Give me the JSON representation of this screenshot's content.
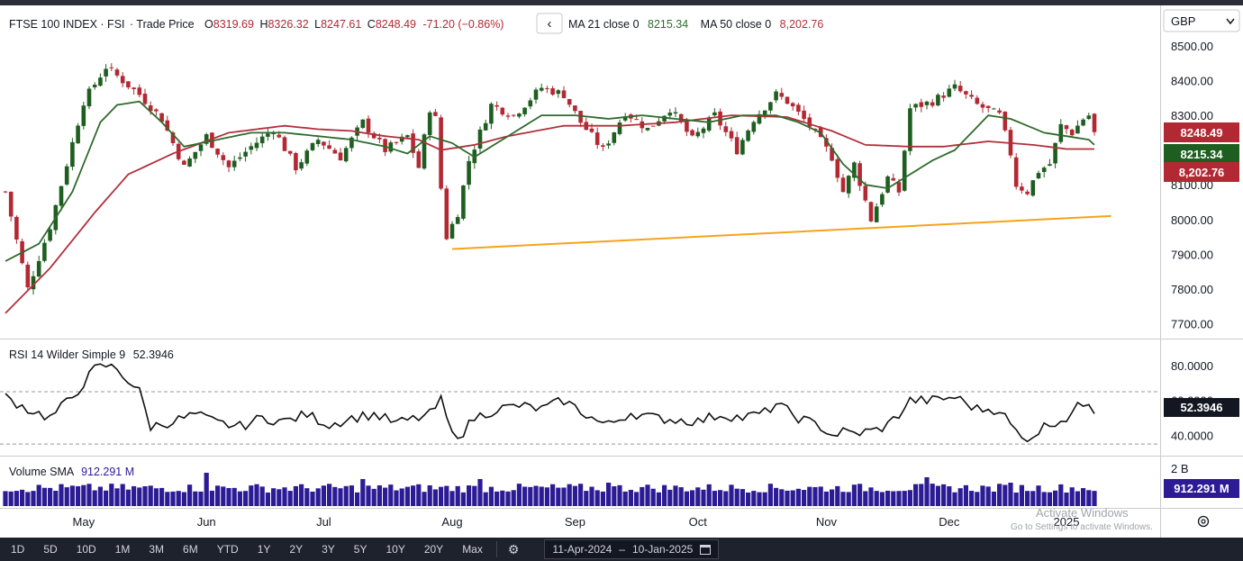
{
  "header": {
    "symbol": "FTSE 100 INDEX · FSI",
    "price_type": "· Trade Price",
    "o_label": "O",
    "o_value": "8319.69",
    "h_label": "H",
    "h_value": "8326.32",
    "l_label": "L",
    "l_value": "8247.61",
    "c_label": "C",
    "c_value": "8248.49",
    "change": "-71.20 (−0.86%)",
    "collapse_glyph": "‹",
    "ma21_label": "MA 21 close 0",
    "ma21_value": "8215.34",
    "ma50_label": "MA 50 close 0",
    "ma50_value": "8,202.76"
  },
  "currency": "GBP",
  "price_badges": {
    "close": "8248.49",
    "ma21": "8215.34",
    "ma50": "8,202.76"
  },
  "rsi": {
    "label": "RSI 14 Wilder Simple 9",
    "value": "52.3946",
    "badge": "52.3946"
  },
  "volume": {
    "label": "Volume SMA",
    "value": "912.291 M",
    "badge": "912.291 M",
    "axis_tick": "2 B"
  },
  "x_axis_labels": [
    {
      "text": "May",
      "day": 14
    },
    {
      "text": "Jun",
      "day": 36
    },
    {
      "text": "Jul",
      "day": 57
    },
    {
      "text": "Aug",
      "day": 80
    },
    {
      "text": "Sep",
      "day": 102
    },
    {
      "text": "Oct",
      "day": 124
    },
    {
      "text": "Nov",
      "day": 147
    },
    {
      "text": "Dec",
      "day": 169
    },
    {
      "text": "2025",
      "day": 190
    }
  ],
  "watermark": {
    "line1": "Activate Windows",
    "line2": "Go to Settings to activate Windows."
  },
  "colors": {
    "up": "#1e5e20",
    "down": "#b22833",
    "ma21": "#2e6b2c",
    "ma50": "#b2303b",
    "trend": "#f7a21b",
    "rsi": "#111111",
    "volume": "#2d1b96",
    "badge_dark": "#131722"
  },
  "range_buttons": [
    "1D",
    "5D",
    "10D",
    "1M",
    "3M",
    "6M",
    "YTD",
    "1Y",
    "2Y",
    "3Y",
    "5Y",
    "10Y",
    "20Y",
    "Max"
  ],
  "date_range": {
    "from": "11-Apr-2024",
    "dash": "–",
    "to": "10-Jan-2025"
  },
  "chart_data": [
    {
      "type": "candlestick",
      "title": "FTSE 100 INDEX · FSI",
      "x_range": [
        "11-Apr-2024",
        "10-Jan-2025"
      ],
      "y_ticks": [
        8500,
        8400,
        8300,
        8200,
        8100,
        8000,
        7900,
        7800,
        7700
      ],
      "ylim": [
        7660,
        8540
      ],
      "anchors": [
        [
          0,
          8080
        ],
        [
          4,
          7800
        ],
        [
          8,
          7980
        ],
        [
          14,
          8340
        ],
        [
          18,
          8440
        ],
        [
          24,
          8360
        ],
        [
          28,
          8290
        ],
        [
          32,
          8150
        ],
        [
          36,
          8240
        ],
        [
          40,
          8150
        ],
        [
          44,
          8210
        ],
        [
          48,
          8260
        ],
        [
          52,
          8150
        ],
        [
          56,
          8230
        ],
        [
          60,
          8180
        ],
        [
          64,
          8280
        ],
        [
          68,
          8200
        ],
        [
          72,
          8240
        ],
        [
          74,
          8150
        ],
        [
          76,
          8320
        ],
        [
          77,
          8290
        ],
        [
          78,
          8090
        ],
        [
          79,
          7950
        ],
        [
          81,
          8020
        ],
        [
          83,
          8170
        ],
        [
          87,
          8330
        ],
        [
          91,
          8300
        ],
        [
          96,
          8380
        ],
        [
          100,
          8360
        ],
        [
          103,
          8280
        ],
        [
          107,
          8200
        ],
        [
          111,
          8310
        ],
        [
          115,
          8260
        ],
        [
          119,
          8320
        ],
        [
          123,
          8230
        ],
        [
          127,
          8300
        ],
        [
          131,
          8200
        ],
        [
          134,
          8290
        ],
        [
          138,
          8360
        ],
        [
          140,
          8340
        ],
        [
          144,
          8270
        ],
        [
          148,
          8180
        ],
        [
          150,
          8080
        ],
        [
          152,
          8160
        ],
        [
          155,
          8000
        ],
        [
          158,
          8120
        ],
        [
          160,
          8080
        ],
        [
          162,
          8320
        ],
        [
          166,
          8340
        ],
        [
          170,
          8380
        ],
        [
          174,
          8330
        ],
        [
          178,
          8300
        ],
        [
          180,
          8190
        ],
        [
          181,
          8100
        ],
        [
          183,
          8080
        ],
        [
          185,
          8140
        ],
        [
          187,
          8160
        ],
        [
          189,
          8270
        ],
        [
          191,
          8250
        ],
        [
          193,
          8290
        ],
        [
          194,
          8300
        ],
        [
          195,
          8248
        ]
      ],
      "ma21_anchors": [
        [
          0,
          7880
        ],
        [
          6,
          7930
        ],
        [
          12,
          8080
        ],
        [
          17,
          8280
        ],
        [
          20,
          8330
        ],
        [
          24,
          8340
        ],
        [
          28,
          8280
        ],
        [
          32,
          8210
        ],
        [
          38,
          8230
        ],
        [
          44,
          8250
        ],
        [
          50,
          8250
        ],
        [
          56,
          8240
        ],
        [
          62,
          8230
        ],
        [
          68,
          8210
        ],
        [
          72,
          8190
        ],
        [
          76,
          8240
        ],
        [
          80,
          8220
        ],
        [
          84,
          8180
        ],
        [
          90,
          8240
        ],
        [
          96,
          8300
        ],
        [
          102,
          8300
        ],
        [
          108,
          8290
        ],
        [
          114,
          8300
        ],
        [
          120,
          8290
        ],
        [
          126,
          8280
        ],
        [
          132,
          8300
        ],
        [
          138,
          8300
        ],
        [
          142,
          8280
        ],
        [
          146,
          8250
        ],
        [
          150,
          8160
        ],
        [
          154,
          8100
        ],
        [
          158,
          8090
        ],
        [
          162,
          8130
        ],
        [
          166,
          8170
        ],
        [
          170,
          8200
        ],
        [
          176,
          8300
        ],
        [
          180,
          8290
        ],
        [
          186,
          8250
        ],
        [
          190,
          8240
        ],
        [
          194,
          8230
        ],
        [
          195,
          8215
        ]
      ],
      "ma50_anchors": [
        [
          0,
          7730
        ],
        [
          8,
          7860
        ],
        [
          16,
          8020
        ],
        [
          22,
          8130
        ],
        [
          30,
          8190
        ],
        [
          40,
          8250
        ],
        [
          50,
          8270
        ],
        [
          56,
          8260
        ],
        [
          62,
          8255
        ],
        [
          68,
          8240
        ],
        [
          74,
          8230
        ],
        [
          78,
          8200
        ],
        [
          84,
          8215
        ],
        [
          90,
          8240
        ],
        [
          100,
          8270
        ],
        [
          110,
          8270
        ],
        [
          120,
          8280
        ],
        [
          130,
          8300
        ],
        [
          140,
          8295
        ],
        [
          148,
          8255
        ],
        [
          154,
          8215
        ],
        [
          162,
          8210
        ],
        [
          168,
          8210
        ],
        [
          176,
          8225
        ],
        [
          184,
          8215
        ],
        [
          190,
          8203
        ],
        [
          195,
          8203
        ]
      ],
      "trend_line": {
        "from": [
          80,
          7915
        ],
        "to": [
          198,
          8010
        ]
      },
      "series": [
        {
          "name": "MA 21 close 0",
          "last": 8215.34
        },
        {
          "name": "MA 50 close 0",
          "last": 8202.76
        }
      ]
    },
    {
      "type": "line",
      "title": "RSI 14 Wilder Simple 9",
      "y_ticks": [
        80,
        60,
        40
      ],
      "ylim": [
        30,
        90
      ],
      "reference_lines": [
        65,
        35
      ],
      "anchors": [
        [
          0,
          62
        ],
        [
          4,
          55
        ],
        [
          8,
          50
        ],
        [
          12,
          62
        ],
        [
          16,
          78
        ],
        [
          18,
          80
        ],
        [
          20,
          78
        ],
        [
          24,
          65
        ],
        [
          26,
          45
        ],
        [
          30,
          48
        ],
        [
          34,
          52
        ],
        [
          38,
          47
        ],
        [
          42,
          45
        ],
        [
          46,
          50
        ],
        [
          50,
          48
        ],
        [
          54,
          52
        ],
        [
          58,
          46
        ],
        [
          62,
          50
        ],
        [
          66,
          52
        ],
        [
          70,
          47
        ],
        [
          74,
          50
        ],
        [
          76,
          52
        ],
        [
          78,
          60
        ],
        [
          80,
          40
        ],
        [
          82,
          42
        ],
        [
          84,
          50
        ],
        [
          88,
          55
        ],
        [
          92,
          57
        ],
        [
          96,
          55
        ],
        [
          100,
          60
        ],
        [
          104,
          52
        ],
        [
          106,
          48
        ],
        [
          108,
          46
        ],
        [
          112,
          53
        ],
        [
          116,
          50
        ],
        [
          120,
          49
        ],
        [
          124,
          48
        ],
        [
          128,
          52
        ],
        [
          132,
          50
        ],
        [
          136,
          53
        ],
        [
          138,
          58
        ],
        [
          142,
          50
        ],
        [
          146,
          45
        ],
        [
          148,
          40
        ],
        [
          150,
          42
        ],
        [
          152,
          41
        ],
        [
          156,
          43
        ],
        [
          158,
          46
        ],
        [
          160,
          52
        ],
        [
          162,
          60
        ],
        [
          166,
          60
        ],
        [
          170,
          62
        ],
        [
          174,
          55
        ],
        [
          178,
          55
        ],
        [
          180,
          46
        ],
        [
          182,
          38
        ],
        [
          184,
          40
        ],
        [
          186,
          45
        ],
        [
          188,
          48
        ],
        [
          190,
          50
        ],
        [
          192,
          56
        ],
        [
          194,
          60
        ],
        [
          195,
          52.39
        ]
      ],
      "last": 52.3946
    },
    {
      "type": "bar",
      "title": "Volume SMA",
      "y_ticks": [
        "2 B"
      ],
      "ylim": [
        0,
        2.2
      ],
      "unit": "B",
      "spikes": [
        [
          36,
          1.85
        ],
        [
          64,
          1.5
        ],
        [
          85,
          1.5
        ],
        [
          108,
          1.3
        ],
        [
          165,
          1.6
        ],
        [
          180,
          1.3
        ]
      ],
      "last_sma": "912.291 M"
    }
  ]
}
